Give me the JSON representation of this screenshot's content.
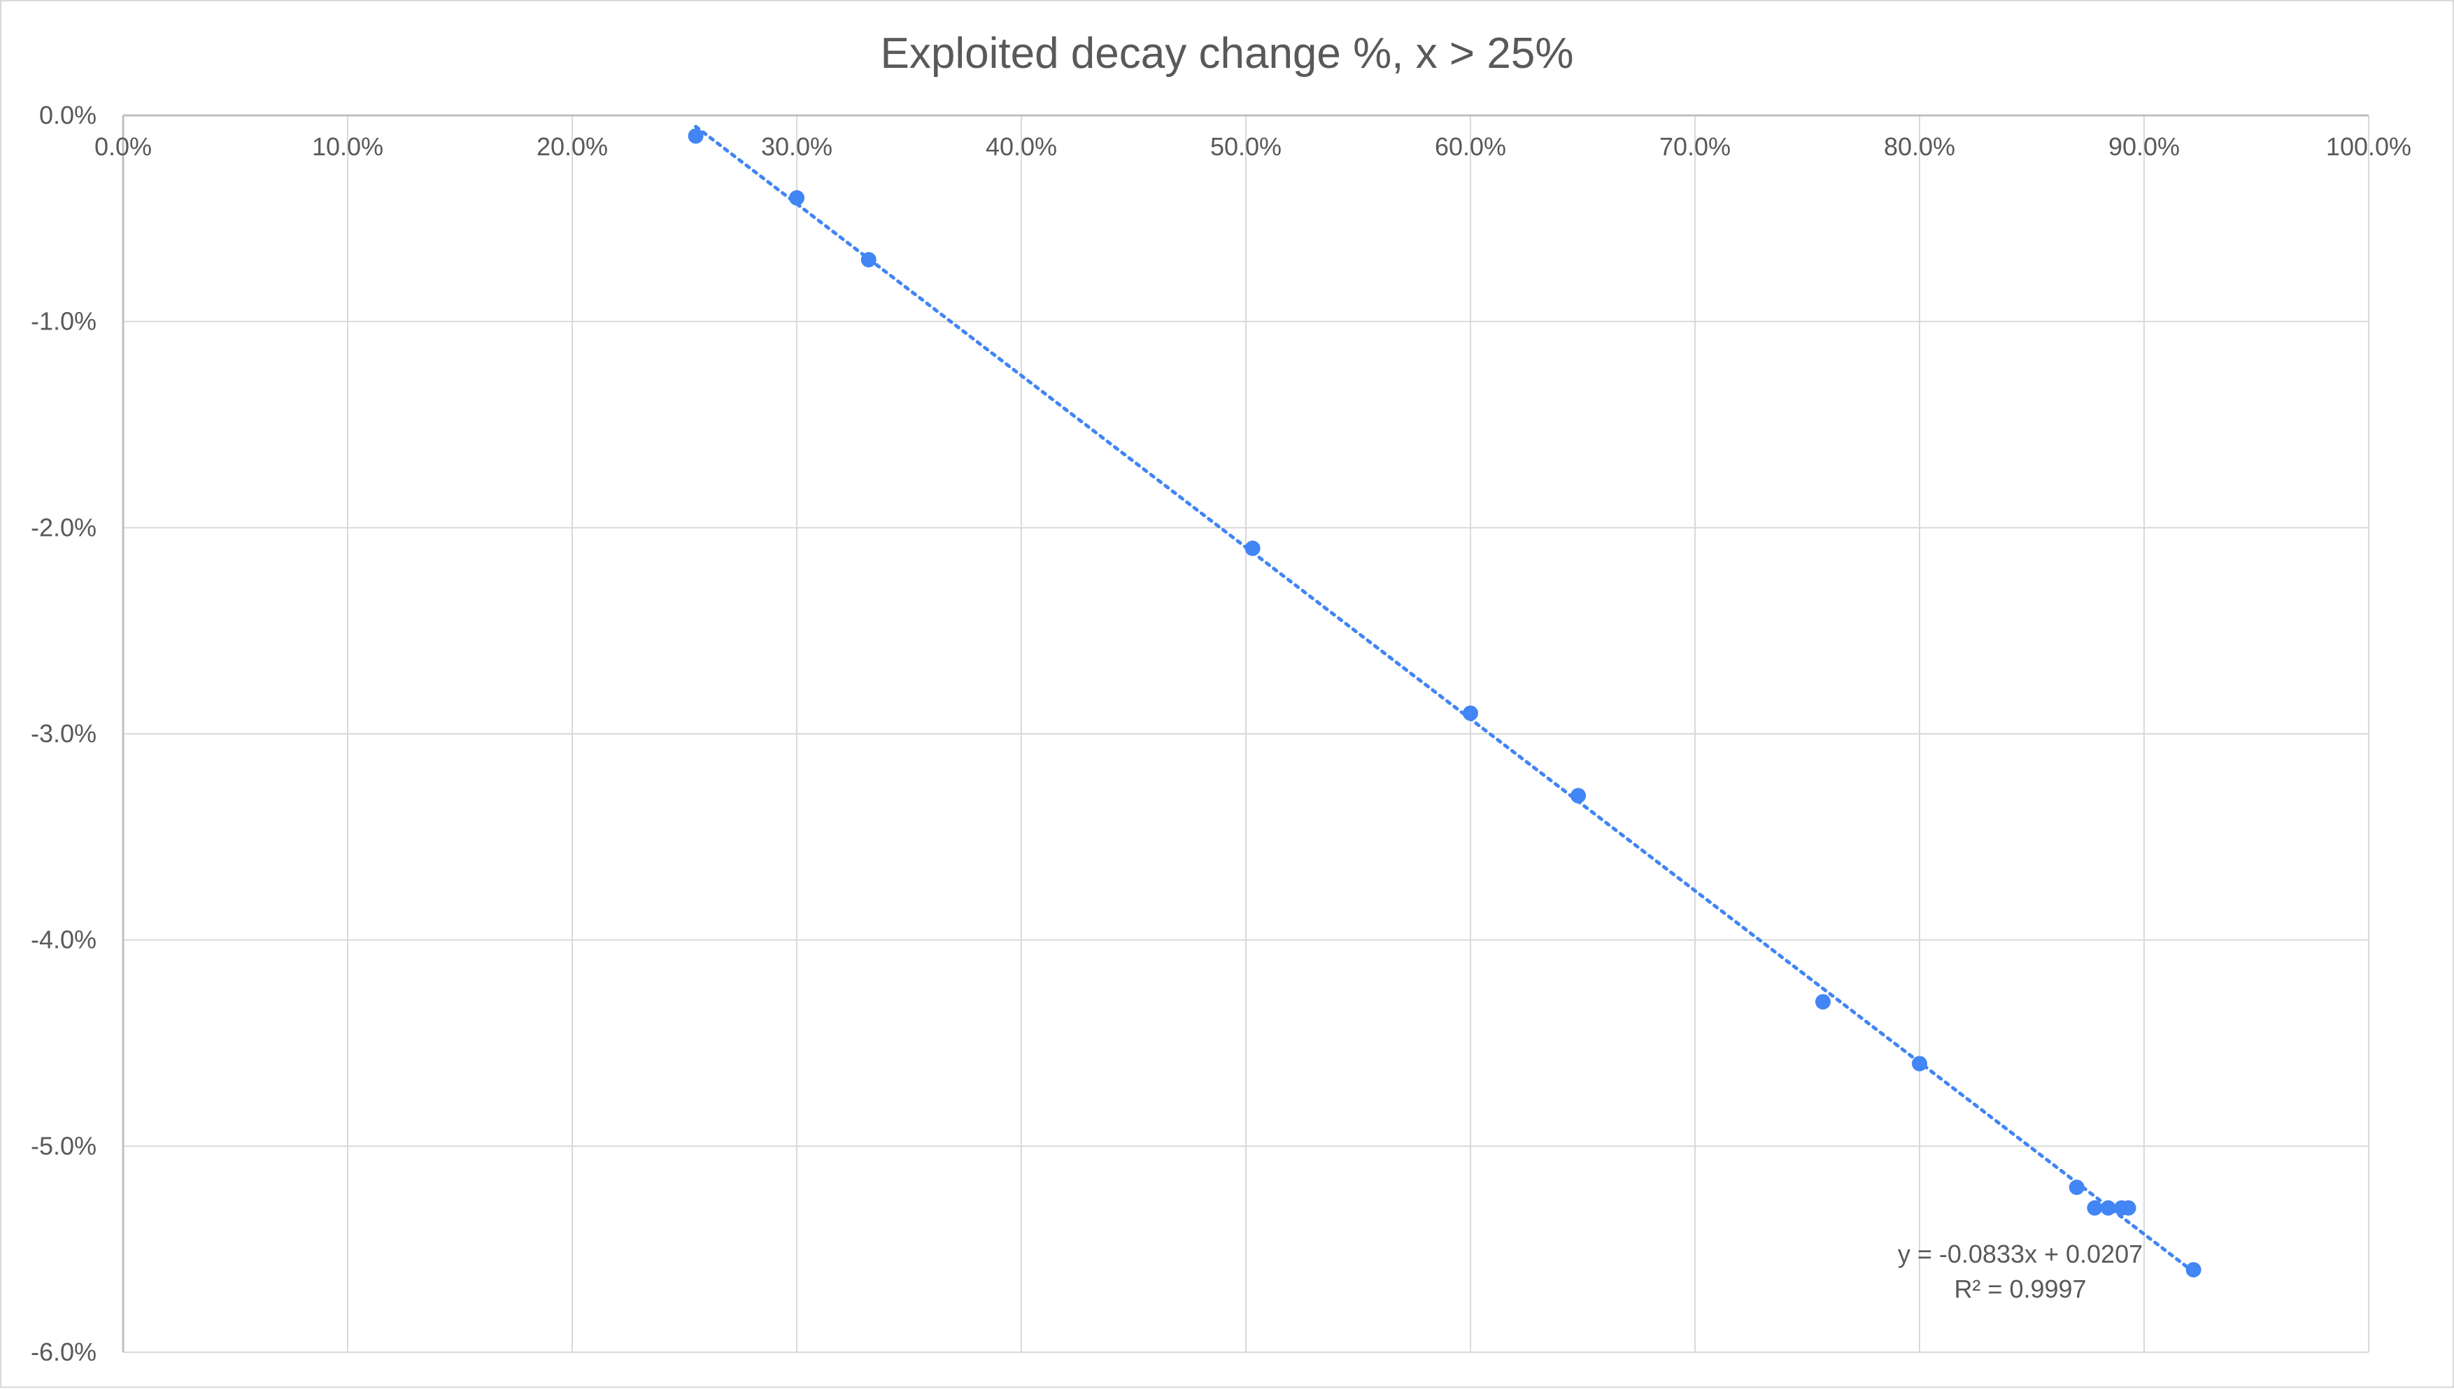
{
  "chart_data": {
    "type": "scatter",
    "title": "Exploited decay change %, x > 25%",
    "xlabel": "",
    "ylabel": "",
    "xlim": [
      0,
      1
    ],
    "ylim": [
      -0.06,
      0
    ],
    "x_ticks": [
      0,
      0.1,
      0.2,
      0.3,
      0.4,
      0.5,
      0.6,
      0.7,
      0.8,
      0.9,
      1.0
    ],
    "x_tick_labels": [
      "0.0%",
      "10.0%",
      "20.0%",
      "30.0%",
      "40.0%",
      "50.0%",
      "60.0%",
      "70.0%",
      "80.0%",
      "90.0%",
      "100.0%"
    ],
    "y_ticks": [
      0,
      -0.01,
      -0.02,
      -0.03,
      -0.04,
      -0.05,
      -0.06
    ],
    "y_tick_labels": [
      "0.0%",
      "-1.0%",
      "-2.0%",
      "-3.0%",
      "-4.0%",
      "-5.0%",
      "-6.0%"
    ],
    "grid": true,
    "x_axis_position": "top",
    "series": [
      {
        "color": "#4285f4",
        "points": [
          {
            "x": 0.255,
            "y": -0.001
          },
          {
            "x": 0.3,
            "y": -0.004
          },
          {
            "x": 0.332,
            "y": -0.007
          },
          {
            "x": 0.503,
            "y": -0.021
          },
          {
            "x": 0.6,
            "y": -0.029
          },
          {
            "x": 0.648,
            "y": -0.033
          },
          {
            "x": 0.757,
            "y": -0.043
          },
          {
            "x": 0.8,
            "y": -0.046
          },
          {
            "x": 0.87,
            "y": -0.052
          },
          {
            "x": 0.878,
            "y": -0.053
          },
          {
            "x": 0.884,
            "y": -0.053
          },
          {
            "x": 0.89,
            "y": -0.053
          },
          {
            "x": 0.893,
            "y": -0.053
          },
          {
            "x": 0.922,
            "y": -0.056
          }
        ]
      }
    ],
    "trendline": {
      "type": "linear",
      "style": "dotted",
      "color": "#4285f4",
      "slope": -0.0833,
      "intercept": 0.0207,
      "x_range": [
        0.255,
        0.922
      ],
      "equation_label": "y = -0.0833x + 0.0207",
      "r2_label": "R² = 0.9997"
    }
  }
}
